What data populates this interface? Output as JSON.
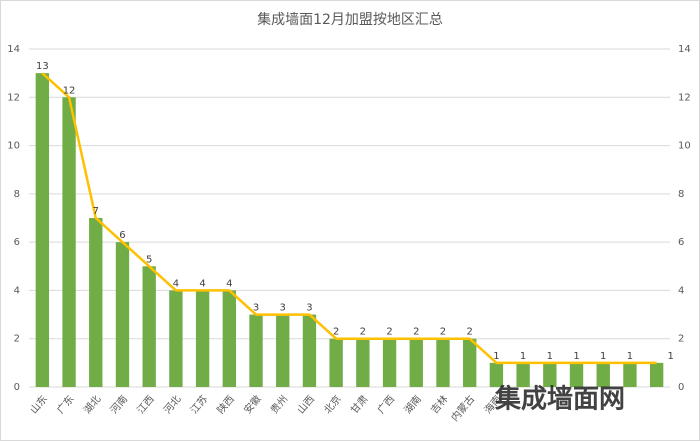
{
  "chart_data": {
    "type": "bar-line",
    "title": "集成墙面12月加盟按地区汇总",
    "categories": [
      "山东",
      "广东",
      "湖北",
      "河南",
      "江西",
      "河北",
      "江苏",
      "陕西",
      "安徽",
      "贵州",
      "山西",
      "北京",
      "甘肃",
      "广西",
      "湖南",
      "吉林",
      "内蒙古",
      "海南",
      null,
      null,
      null,
      null,
      null,
      null
    ],
    "series": [
      {
        "type": "bar",
        "color": "#70ad47",
        "values": [
          13,
          12,
          7,
          6,
          5,
          4,
          4,
          4,
          3,
          3,
          3,
          2,
          2,
          2,
          2,
          2,
          2,
          1,
          1,
          1,
          1,
          1,
          1,
          1
        ]
      },
      {
        "type": "line",
        "axis": "y2",
        "color": "#ffc000",
        "values": [
          13,
          12,
          7,
          6,
          5,
          4,
          4,
          4,
          3,
          3,
          3,
          2,
          2,
          2,
          2,
          2,
          2,
          1,
          1,
          1,
          1,
          1,
          1,
          1
        ]
      }
    ],
    "ylim": [
      0,
      14
    ],
    "yticks": [
      0,
      2,
      4,
      6,
      8,
      10,
      12,
      14
    ],
    "y2lim": [
      0,
      14
    ],
    "y2ticks": [
      0,
      2,
      4,
      6,
      8,
      10,
      12,
      14
    ],
    "grid": true,
    "watermark": "集成墙面网"
  }
}
